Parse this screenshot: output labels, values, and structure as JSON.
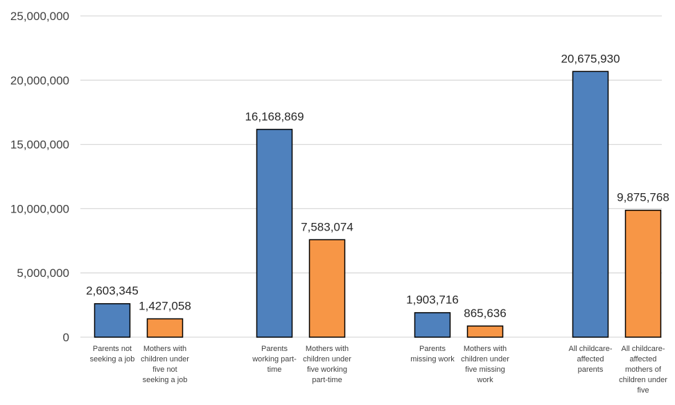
{
  "chart_data": {
    "type": "bar",
    "title": "",
    "xlabel": "",
    "ylabel": "",
    "ylim": [
      0,
      25000000
    ],
    "yticks": [
      0,
      5000000,
      10000000,
      15000000,
      20000000,
      25000000
    ],
    "ytick_labels": [
      "0",
      "5,000,000",
      "10,000,000",
      "15,000,000",
      "20,000,000",
      "25,000,000"
    ],
    "grid": true,
    "colors": {
      "parents": "#4f81bd",
      "mothers": "#f79646"
    },
    "bars": [
      {
        "group": 0,
        "role": "parents",
        "value": 2603345,
        "label": "2,603,345",
        "category": [
          "Parents not",
          "seeking a job"
        ]
      },
      {
        "group": 0,
        "role": "mothers",
        "value": 1427058,
        "label": "1,427,058",
        "category": [
          "Mothers with",
          "children under",
          "five not",
          "seeking a job"
        ]
      },
      {
        "group": 1,
        "role": "parents",
        "value": 16168869,
        "label": "16,168,869",
        "category": [
          "Parents",
          "working part-",
          "time"
        ]
      },
      {
        "group": 1,
        "role": "mothers",
        "value": 7583074,
        "label": "7,583,074",
        "category": [
          "Mothers with",
          "children under",
          "five working",
          "part-time"
        ]
      },
      {
        "group": 2,
        "role": "parents",
        "value": 1903716,
        "label": "1,903,716",
        "category": [
          "Parents",
          "missing work"
        ]
      },
      {
        "group": 2,
        "role": "mothers",
        "value": 865636,
        "label": "865,636",
        "category": [
          "Mothers with",
          "children under",
          "five missing",
          "work"
        ]
      },
      {
        "group": 3,
        "role": "parents",
        "value": 20675930,
        "label": "20,675,930",
        "category": [
          "All childcare-",
          "affected",
          "parents"
        ]
      },
      {
        "group": 3,
        "role": "mothers",
        "value": 9875768,
        "label": "9,875,768",
        "category": [
          "All childcare-",
          "affected",
          "mothers of",
          "children under",
          "five"
        ]
      }
    ]
  }
}
